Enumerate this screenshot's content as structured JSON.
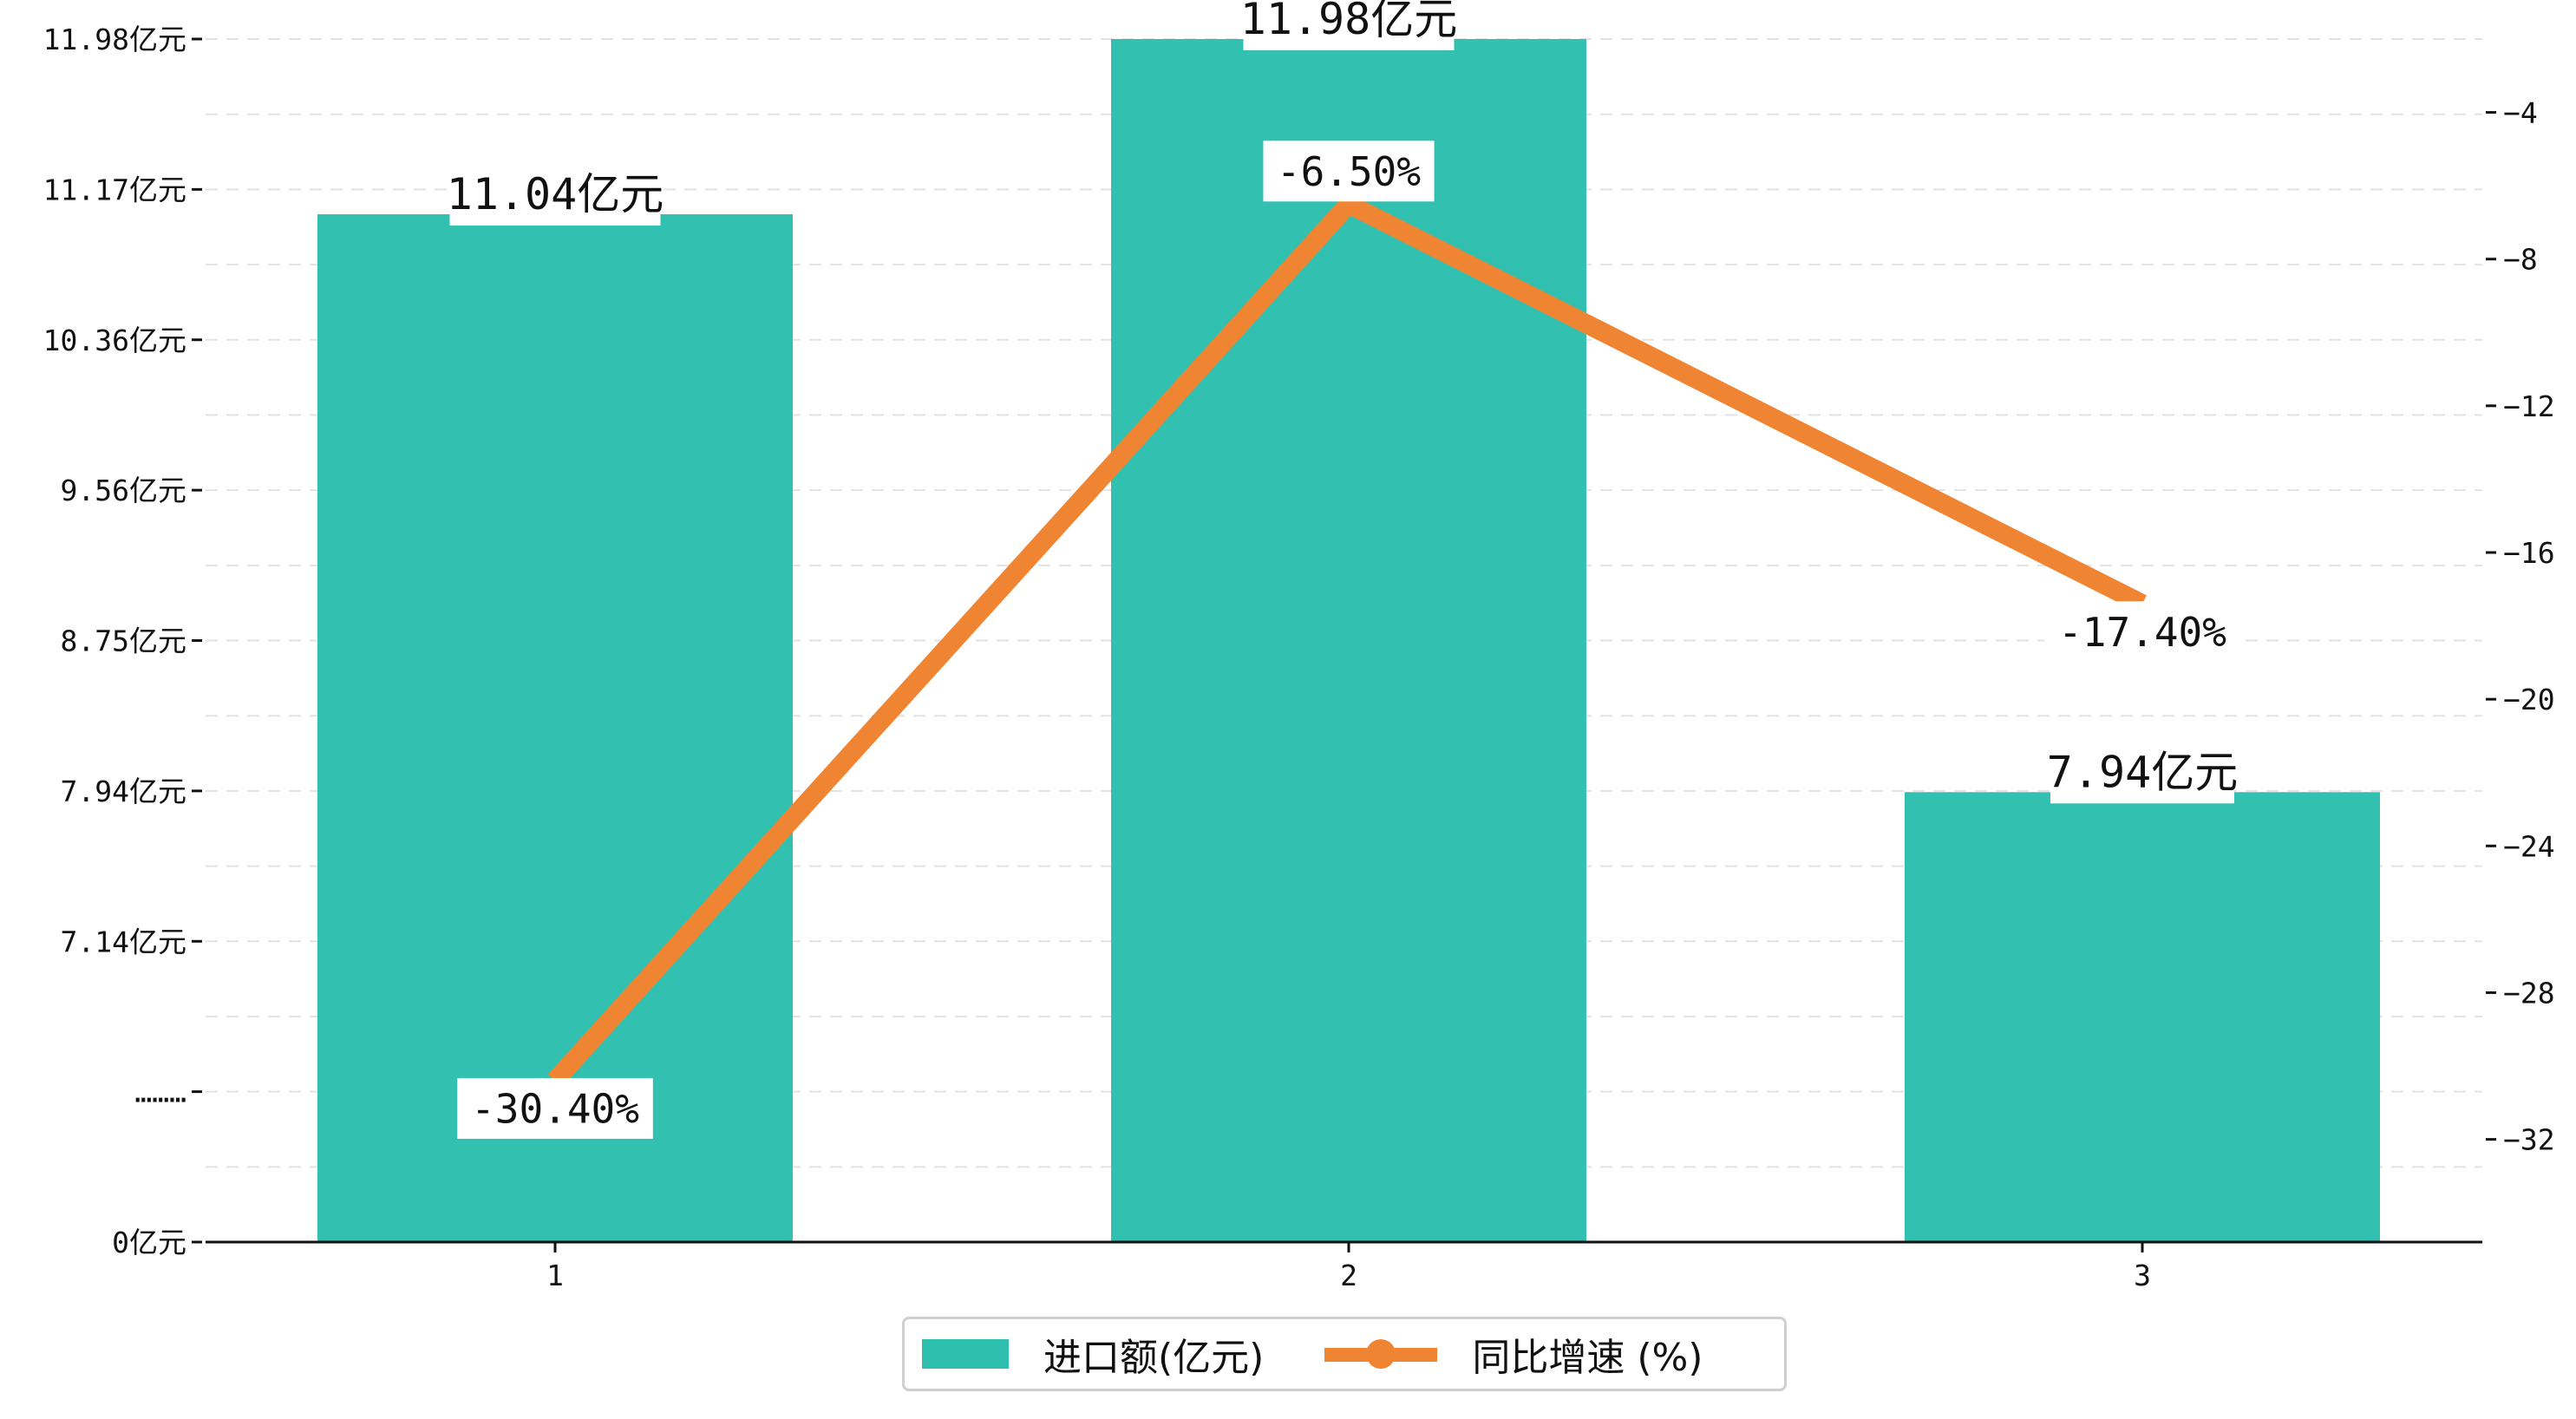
{
  "chart_data": {
    "type": "bar+line",
    "categories": [
      "1",
      "2",
      "3"
    ],
    "series": [
      {
        "name": "进口额(亿元)",
        "kind": "bar",
        "axis": "left",
        "values": [
          11.04,
          11.98,
          7.94
        ],
        "labels": [
          "11.04亿元",
          "11.98亿元",
          "7.94亿元"
        ],
        "color": "#2ebfaf"
      },
      {
        "name": "同比增速 (%)",
        "kind": "line",
        "axis": "right",
        "values": [
          -30.4,
          -6.5,
          -17.4
        ],
        "labels": [
          "-30.40%",
          "-6.50%",
          "-17.40%"
        ],
        "color": "#ef8533"
      }
    ],
    "left_axis": {
      "tick_labels": [
        "0亿元",
        "………",
        "7.14亿元",
        "7.94亿元",
        "8.75亿元",
        "9.56亿元",
        "10.36亿元",
        "11.17亿元",
        "11.98亿元"
      ],
      "broken": true
    },
    "right_axis": {
      "ticks": [
        -32,
        -28,
        -24,
        -20,
        -16,
        -12,
        -8,
        -4
      ],
      "ylim": [
        -34.8,
        -2.0
      ]
    },
    "grid": "horizontal-dashed",
    "legend_position": "bottom-center"
  }
}
